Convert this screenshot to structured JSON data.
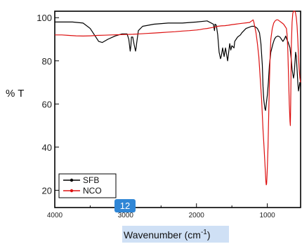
{
  "chart_data": {
    "type": "line",
    "xlabel": "Wavenumber (cm",
    "xlabel_sup": "-1",
    "xlabel_close": ")",
    "ylabel": "% T",
    "xlim": [
      4000,
      530
    ],
    "ylim": [
      12,
      103
    ],
    "x_ticks": [
      "4000",
      "3000",
      "2000",
      "1000"
    ],
    "x_tick_values": [
      4000,
      3000,
      2000,
      1000
    ],
    "y_ticks": [
      "20",
      "40",
      "60",
      "80",
      "100"
    ],
    "y_tick_values": [
      20,
      40,
      60,
      80,
      100
    ],
    "legend_position": "bottom-left",
    "selection_badge": "12",
    "series": [
      {
        "name": "SFB",
        "color": "#000000",
        "x": [
          4000,
          3750,
          3600,
          3500,
          3420,
          3380,
          3330,
          3250,
          3150,
          3050,
          2980,
          2955,
          2935,
          2925,
          2918,
          2900,
          2880,
          2860,
          2852,
          2845,
          2820,
          2760,
          2600,
          2400,
          2200,
          2000,
          1850,
          1760,
          1745,
          1738,
          1720,
          1700,
          1680,
          1660,
          1650,
          1640,
          1630,
          1610,
          1600,
          1590,
          1560,
          1545,
          1530,
          1515,
          1500,
          1470,
          1460,
          1440,
          1420,
          1380,
          1360,
          1330,
          1300,
          1260,
          1220,
          1180,
          1140,
          1110,
          1090,
          1070,
          1060,
          1050,
          1035,
          1025,
          1015,
          1000,
          985,
          970,
          950,
          920,
          900,
          880,
          850,
          820,
          800,
          780,
          760,
          740,
          725,
          710,
          700,
          680,
          660,
          650,
          640,
          630,
          620,
          610,
          600,
          590,
          580,
          570,
          560,
          550,
          540,
          530
        ],
        "y": [
          98,
          98,
          97.5,
          95,
          91,
          89,
          88.5,
          90,
          91.5,
          92.5,
          92.5,
          90,
          84.5,
          87,
          91,
          91,
          87.5,
          84.5,
          86,
          88,
          94,
          96,
          97,
          97.5,
          97.5,
          98,
          98.5,
          97,
          94,
          97,
          96.5,
          92,
          84,
          81,
          82,
          84,
          86,
          82,
          84,
          86,
          80,
          84,
          88,
          85,
          87,
          86,
          89,
          90,
          91,
          92,
          93,
          94,
          95,
          95.5,
          96,
          96,
          95,
          93,
          88,
          78,
          68,
          62,
          58,
          57,
          60,
          64,
          70,
          78,
          84,
          88,
          90,
          91,
          91.5,
          91,
          90,
          89,
          90,
          91.5,
          90,
          89,
          88,
          86,
          80,
          76,
          74,
          72,
          74,
          79,
          84,
          82,
          76,
          70,
          66,
          68,
          70,
          68
        ]
      },
      {
        "name": "NCO",
        "color": "#dd1111",
        "x": [
          4000,
          3900,
          3800,
          3700,
          3600,
          3500,
          3400,
          3300,
          3200,
          3100,
          3000,
          2900,
          2800,
          2700,
          2600,
          2500,
          2400,
          2300,
          2200,
          2100,
          2000,
          1950,
          1900,
          1850,
          1800,
          1750,
          1700,
          1650,
          1600,
          1550,
          1500,
          1450,
          1400,
          1350,
          1300,
          1250,
          1220,
          1200,
          1190,
          1160,
          1140,
          1120,
          1100,
          1080,
          1070,
          1060,
          1050,
          1040,
          1030,
          1025,
          1020,
          1015,
          1010,
          1005,
          1000,
          990,
          980,
          970,
          960,
          950,
          930,
          910,
          890,
          870,
          850,
          830,
          810,
          790,
          770,
          750,
          730,
          720,
          710,
          700,
          690,
          680,
          675,
          670,
          665,
          660,
          650,
          640,
          630,
          620,
          610,
          600,
          590,
          580,
          570,
          560,
          550,
          540,
          530
        ],
        "y": [
          92,
          92,
          91.8,
          91.6,
          91.5,
          91.6,
          91.8,
          91.9,
          92,
          92.1,
          92.2,
          92.3,
          92.5,
          92.7,
          92.9,
          93.1,
          93.3,
          93.5,
          93.8,
          94,
          94.3,
          94.5,
          94.8,
          95,
          95.3,
          95.6,
          96,
          96.2,
          96.3,
          96.5,
          96.8,
          97,
          97.2,
          97.4,
          97.6,
          97.8,
          98.5,
          99,
          98,
          93,
          88,
          82,
          72,
          62,
          55,
          48,
          42,
          36,
          30,
          27,
          24,
          22.5,
          23,
          26,
          30,
          40,
          55,
          70,
          82,
          90,
          95,
          97.5,
          98.5,
          99,
          99,
          98.5,
          98,
          97.5,
          97,
          96,
          95,
          92,
          85,
          72,
          60,
          52,
          50,
          60,
          75,
          88,
          98,
          102,
          103,
          103,
          103,
          102,
          100,
          96,
          90,
          82,
          76,
          72,
          70
        ]
      }
    ]
  }
}
